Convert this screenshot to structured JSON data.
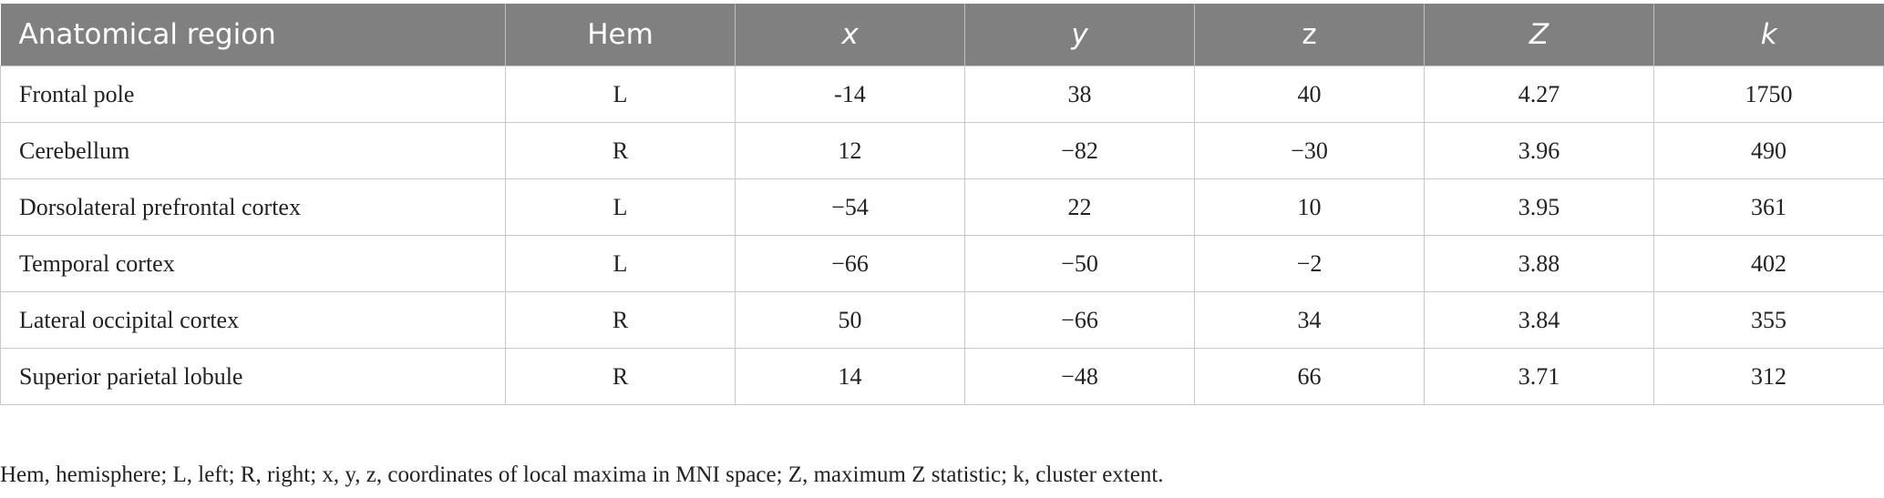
{
  "table": {
    "header": [
      "Anatomical region",
      "Hem",
      "x",
      "y",
      "z",
      "Z",
      "k"
    ],
    "rows": [
      [
        "Frontal pole",
        "L",
        "-14",
        "38",
        "40",
        "4.27",
        "1750"
      ],
      [
        "Cerebellum",
        "R",
        "12",
        "−82",
        "−30",
        "3.96",
        "490"
      ],
      [
        "Dorsolateral prefrontal cortex",
        "L",
        "−54",
        "22",
        "10",
        "3.95",
        "361"
      ],
      [
        "Temporal cortex",
        "L",
        "−66",
        "−50",
        "−2",
        "3.88",
        "402"
      ],
      [
        "Lateral occipital cortex",
        "R",
        "50",
        "−66",
        "34",
        "3.84",
        "355"
      ],
      [
        "Superior parietal lobule",
        "R",
        "14",
        "−48",
        "66",
        "3.71",
        "312"
      ]
    ]
  },
  "footnote": "Hem, hemisphere; L, left; R, right; x, y, z, coordinates of local maxima in MNI space; Z, maximum Z statistic; k, cluster extent."
}
